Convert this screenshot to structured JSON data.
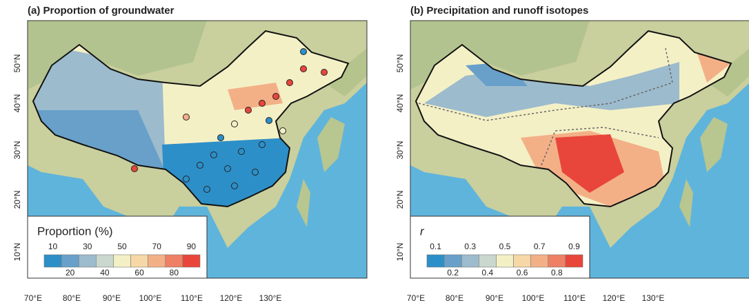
{
  "panels": [
    {
      "title": "(a) Proportion of groundwater",
      "latitude_labels": [
        "50°N",
        "40°N",
        "30°N",
        "20°N",
        "10°N"
      ],
      "longitude_labels": [
        "70°E",
        "80°E",
        "90°E",
        "100°E",
        "110°E",
        "120°E",
        "130°E"
      ],
      "legend": {
        "title": "Proportion (%)",
        "upper_labels": [
          10,
          30,
          50,
          70,
          90
        ],
        "lower_labels": [
          20,
          40,
          60,
          80
        ],
        "colors": [
          "#2d8fc8",
          "#68a0c9",
          "#9cbbcd",
          "#c9d7cf",
          "#f4f0c6",
          "#f6d8a6",
          "#f3b087",
          "#ee8065",
          "#e8463a"
        ]
      }
    },
    {
      "title": "(b) Precipitation and runoff isotopes",
      "latitude_labels": [
        "50°N",
        "40°N",
        "30°N",
        "20°N",
        "10°N"
      ],
      "longitude_labels": [
        "70°E",
        "80°E",
        "90°E",
        "100°E",
        "110°E",
        "120°E",
        "130°E"
      ],
      "legend": {
        "title": "r",
        "upper_labels": [
          0.1,
          0.3,
          0.5,
          0.7,
          0.9
        ],
        "lower_labels": [
          0.2,
          0.4,
          0.6,
          0.8
        ],
        "colors": [
          "#2d8fc8",
          "#68a0c9",
          "#9cbbcd",
          "#c9d7cf",
          "#f4f0c6",
          "#f6d8a6",
          "#f3b087",
          "#ee8065",
          "#e8463a"
        ]
      }
    }
  ]
}
